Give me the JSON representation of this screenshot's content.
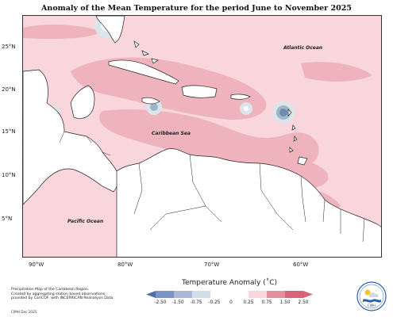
{
  "title": "Anomaly of the Mean Temperature for the period June to November 2025",
  "map": {
    "region": "Caribbean",
    "labels": {
      "atlantic": "Atlantic Ocean",
      "caribbean": "Caribbean Sea",
      "pacific": "Pacific Ocean"
    },
    "lat_labels": [
      "25°N",
      "20°N",
      "15°N",
      "10°N",
      "5°N"
    ],
    "lon_labels": [
      "90°W",
      "80°W",
      "70°W",
      "60°W"
    ],
    "colors": {
      "background_anomaly": "#f8d6dc",
      "warm_anomaly": "#eeb3bd",
      "cool_anomaly_light": "#dbe6ec",
      "cool_anomaly": "#9fb6c8",
      "cool_anomaly_strong": "#6e8aad",
      "land": "#ffffff",
      "coastline": "#222222"
    }
  },
  "legend": {
    "title": "Temperature Anomaly (˚C)",
    "ticks": [
      "-2.50",
      "-1.50",
      "-0.75",
      "-0.25",
      "0",
      "0.25",
      "0.75",
      "1.50",
      "2.50"
    ],
    "colors": [
      "#4d6fab",
      "#7b94c6",
      "#a8b8d6",
      "#d3dde8",
      "#ffffff",
      "#f8d6dc",
      "#eeb3bd",
      "#e48f9e",
      "#d86478"
    ]
  },
  "footnote": {
    "line1": "Precipitation Map of the Caribbean Region.",
    "line2": "Created by aggregating station based observations,",
    "line3": "provided by CariCOF, with INCERRICAN Reanalysis Data.",
    "credit": "CIMH Dec 2025"
  },
  "logo": {
    "text": "CIMH"
  }
}
